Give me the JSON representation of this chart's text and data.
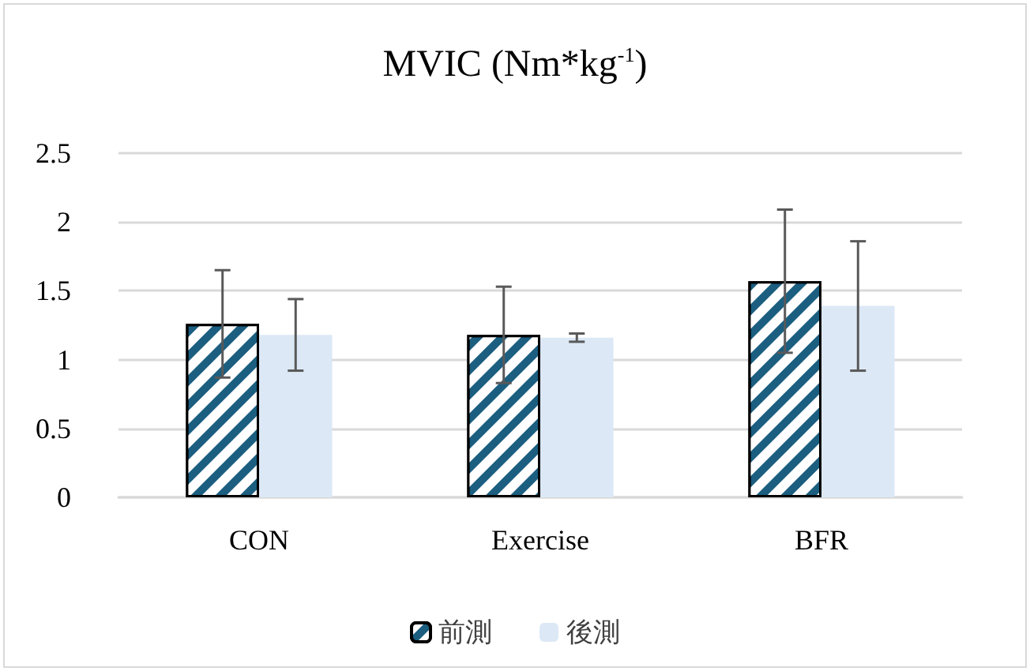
{
  "chart_data": {
    "type": "bar",
    "title": "MVIC (Nm*kg$^{-1}$)",
    "categories": [
      "CON",
      "Exercise",
      "BFR"
    ],
    "series": [
      {
        "name": "前測",
        "color": "#1b5e80",
        "values": [
          1.26,
          1.18,
          1.57
        ],
        "errors": [
          0.39,
          0.35,
          0.52
        ]
      },
      {
        "name": "後測",
        "color": "#dce8f5",
        "values": [
          1.18,
          1.16,
          1.39
        ],
        "errors": [
          0.26,
          0.03,
          0.47
        ]
      }
    ],
    "ylim": [
      0,
      2.5
    ],
    "yticks": [
      0,
      0.5,
      1,
      1.5,
      2,
      2.5
    ],
    "grid": "y",
    "legend": "bottom"
  }
}
